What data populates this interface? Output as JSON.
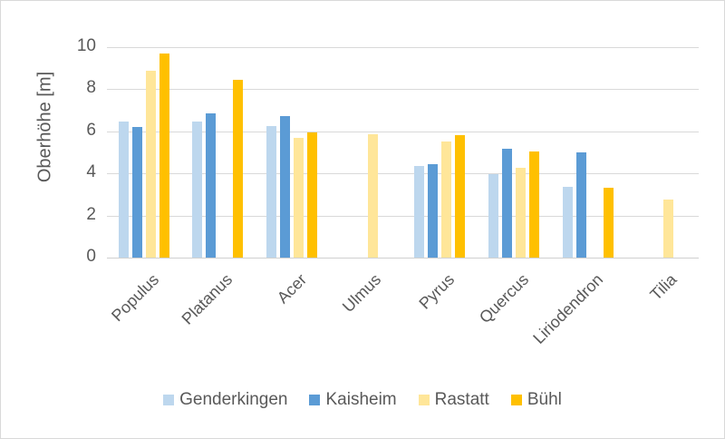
{
  "chart_data": {
    "type": "bar",
    "title": "",
    "xlabel": "",
    "ylabel": "Oberhöhe [m]",
    "ylim": [
      0,
      10
    ],
    "yticks": [
      0,
      2,
      4,
      6,
      8,
      10
    ],
    "grid": true,
    "legend_position": "bottom",
    "categories": [
      "Populus",
      "Platanus",
      "Acer",
      "Ulmus",
      "Pyrus",
      "Quercus",
      "Liriodendron",
      "Tilia"
    ],
    "series": [
      {
        "name": "Genderkingen",
        "color": "#BDD7EE",
        "values": [
          6.45,
          6.45,
          6.26,
          null,
          4.35,
          3.98,
          3.36,
          null
        ]
      },
      {
        "name": "Kaisheim",
        "color": "#5B9BD5",
        "values": [
          6.22,
          6.84,
          6.72,
          null,
          4.44,
          5.16,
          5.01,
          null
        ]
      },
      {
        "name": "Rastatt",
        "color": "#FFE699",
        "values": [
          8.87,
          null,
          5.68,
          5.88,
          5.53,
          4.28,
          null,
          2.76
        ]
      },
      {
        "name": "Bühl",
        "color": "#FFC000",
        "values": [
          9.71,
          8.46,
          5.95,
          null,
          5.81,
          5.04,
          3.32,
          null
        ]
      }
    ]
  },
  "axis": {
    "ylabel": "Oberhöhe [m]",
    "yticks": [
      "0",
      "2",
      "4",
      "6",
      "8",
      "10"
    ]
  },
  "legend": [
    {
      "label": "Genderkingen",
      "color": "#BDD7EE"
    },
    {
      "label": "Kaisheim",
      "color": "#5B9BD5"
    },
    {
      "label": "Rastatt",
      "color": "#FFE699"
    },
    {
      "label": "Bühl",
      "color": "#FFC000"
    }
  ]
}
